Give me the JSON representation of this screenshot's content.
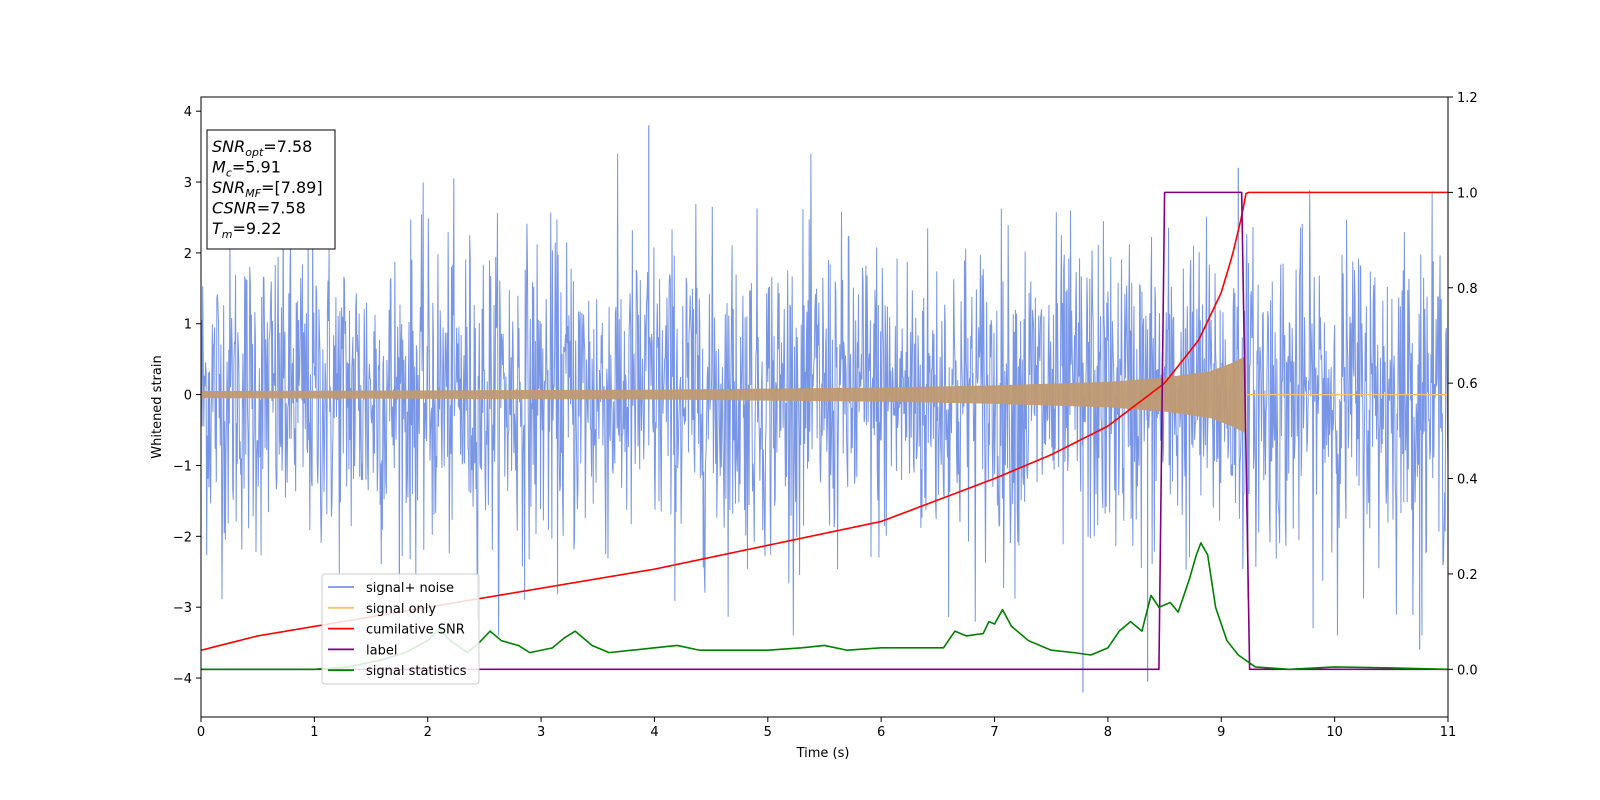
{
  "chart_data": {
    "type": "line",
    "title": "",
    "xlabel": "Time (s)",
    "ylabel": "Whitened strain",
    "y2label": "",
    "xlim": [
      0,
      11
    ],
    "ylim": [
      -4.55,
      4.2
    ],
    "y2lim": [
      -0.1,
      1.2
    ],
    "xticks": [
      0,
      1,
      2,
      3,
      4,
      5,
      6,
      7,
      8,
      9,
      10,
      11
    ],
    "xtick_labels": [
      "0",
      "1",
      "2",
      "3",
      "4",
      "5",
      "6",
      "7",
      "8",
      "9",
      "10",
      "11"
    ],
    "yticks": [
      4,
      3,
      2,
      1,
      0,
      -1,
      -2,
      -3,
      -4
    ],
    "ytick_labels": [
      "4",
      "3",
      "2",
      "1",
      "0",
      "−1",
      "−2",
      "−3",
      "−4"
    ],
    "y2ticks": [
      1.2,
      1.0,
      0.8,
      0.6,
      0.4,
      0.2,
      0.0
    ],
    "y2tick_labels": [
      "1.2",
      "1.0",
      "0.8",
      "0.6",
      "0.4",
      "0.2",
      "0.0"
    ],
    "grid": false,
    "legend_position": "lower-left",
    "info_box": {
      "snr_opt": {
        "sym": "SNR",
        "sub": "opt",
        "val": "=7.58"
      },
      "mc": {
        "sym": "M",
        "sub": "c",
        "val": "=5.91"
      },
      "snr_mf": {
        "sym": "SNR",
        "sub": "MF",
        "val": "=[7.89]"
      },
      "csnr": {
        "sym": "CSNR",
        "sub": "",
        "val": "=7.58"
      },
      "tm": {
        "sym": "T",
        "sub": "m",
        "val": "=9.22"
      }
    },
    "series": [
      {
        "name": "signal+ noise",
        "axis": "left",
        "color": "#7895e6",
        "x_range": [
          0,
          11
        ],
        "sample_count": 2200,
        "noise_sigma": 1.1,
        "notable_peaks": [
          [
            3.95,
            3.8
          ],
          [
            7.78,
            -4.2
          ],
          [
            8.35,
            -4.05
          ],
          [
            10.75,
            -3.6
          ],
          [
            9.15,
            3.2
          ]
        ]
      },
      {
        "name": "signal only",
        "axis": "left",
        "color": "#ffbf66",
        "x_range": [
          0,
          9.22
        ],
        "amplitude_envelope": [
          [
            0,
            0.05
          ],
          [
            2,
            0.06
          ],
          [
            4,
            0.07
          ],
          [
            6,
            0.1
          ],
          [
            7,
            0.13
          ],
          [
            8,
            0.18
          ],
          [
            8.5,
            0.24
          ],
          [
            8.9,
            0.33
          ],
          [
            9.1,
            0.45
          ],
          [
            9.22,
            0.55
          ]
        ],
        "after_merger_value": 0
      },
      {
        "name": "cumilative SNR",
        "axis": "right",
        "color": "#ff0000",
        "points": [
          [
            0,
            0.04
          ],
          [
            0.5,
            0.07
          ],
          [
            1,
            0.09
          ],
          [
            2,
            0.13
          ],
          [
            3,
            0.17
          ],
          [
            4,
            0.21
          ],
          [
            5,
            0.26
          ],
          [
            6,
            0.31
          ],
          [
            7,
            0.4
          ],
          [
            7.5,
            0.45
          ],
          [
            8,
            0.51
          ],
          [
            8.5,
            0.6
          ],
          [
            8.8,
            0.69
          ],
          [
            9,
            0.79
          ],
          [
            9.1,
            0.87
          ],
          [
            9.18,
            0.95
          ],
          [
            9.22,
            1.0
          ],
          [
            11,
            1.0
          ]
        ]
      },
      {
        "name": "label",
        "axis": "right",
        "color": "#800080",
        "points": [
          [
            0,
            0.0
          ],
          [
            8.45,
            0.0
          ],
          [
            8.5,
            1.0
          ],
          [
            9.18,
            1.0
          ],
          [
            9.25,
            0.0
          ],
          [
            11,
            0.0
          ]
        ]
      },
      {
        "name": "signal statistics",
        "axis": "right",
        "color": "#008000",
        "points": [
          [
            0,
            0.0
          ],
          [
            1.0,
            0.0
          ],
          [
            1.3,
            0.005
          ],
          [
            1.6,
            0.02
          ],
          [
            1.8,
            0.035
          ],
          [
            2.0,
            0.06
          ],
          [
            2.1,
            0.085
          ],
          [
            2.2,
            0.06
          ],
          [
            2.35,
            0.035
          ],
          [
            2.45,
            0.055
          ],
          [
            2.55,
            0.08
          ],
          [
            2.65,
            0.06
          ],
          [
            2.8,
            0.05
          ],
          [
            2.9,
            0.035
          ],
          [
            3.0,
            0.04
          ],
          [
            3.1,
            0.045
          ],
          [
            3.2,
            0.065
          ],
          [
            3.3,
            0.08
          ],
          [
            3.45,
            0.05
          ],
          [
            3.6,
            0.035
          ],
          [
            3.8,
            0.04
          ],
          [
            4.0,
            0.045
          ],
          [
            4.2,
            0.05
          ],
          [
            4.4,
            0.04
          ],
          [
            4.7,
            0.04
          ],
          [
            5.0,
            0.04
          ],
          [
            5.3,
            0.045
          ],
          [
            5.5,
            0.05
          ],
          [
            5.7,
            0.04
          ],
          [
            6.0,
            0.045
          ],
          [
            6.3,
            0.045
          ],
          [
            6.55,
            0.045
          ],
          [
            6.65,
            0.08
          ],
          [
            6.75,
            0.07
          ],
          [
            6.9,
            0.075
          ],
          [
            6.95,
            0.1
          ],
          [
            7.0,
            0.095
          ],
          [
            7.07,
            0.125
          ],
          [
            7.15,
            0.09
          ],
          [
            7.3,
            0.06
          ],
          [
            7.5,
            0.04
          ],
          [
            7.7,
            0.035
          ],
          [
            7.85,
            0.03
          ],
          [
            8.0,
            0.045
          ],
          [
            8.1,
            0.08
          ],
          [
            8.2,
            0.1
          ],
          [
            8.3,
            0.08
          ],
          [
            8.38,
            0.155
          ],
          [
            8.45,
            0.13
          ],
          [
            8.55,
            0.14
          ],
          [
            8.62,
            0.12
          ],
          [
            8.72,
            0.19
          ],
          [
            8.78,
            0.24
          ],
          [
            8.82,
            0.265
          ],
          [
            8.88,
            0.24
          ],
          [
            8.95,
            0.13
          ],
          [
            9.05,
            0.06
          ],
          [
            9.15,
            0.03
          ],
          [
            9.3,
            0.005
          ],
          [
            9.6,
            0.0
          ],
          [
            10.0,
            0.005
          ],
          [
            10.5,
            0.003
          ],
          [
            11,
            0.0
          ]
        ]
      }
    ]
  }
}
